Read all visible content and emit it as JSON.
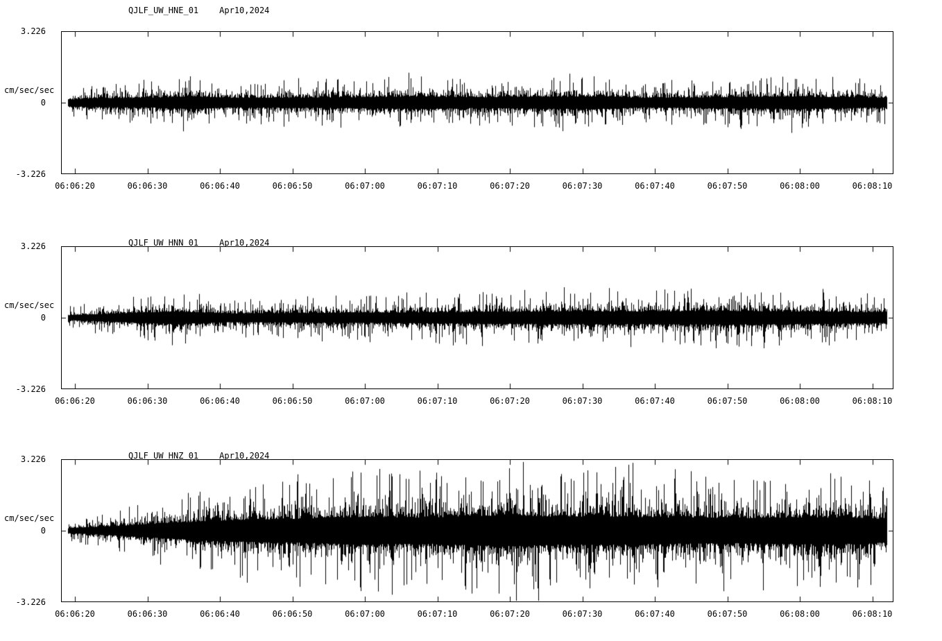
{
  "page": {
    "background_color": "#ffffff",
    "trace_color": "#000000"
  },
  "chart_data": [
    {
      "type": "line",
      "title": "QJLF_UW_HNE_01",
      "date": "Apr10,2024",
      "ylabel": "cm/sec/sec",
      "xlabel": "",
      "ylim": [
        -3.226,
        3.226
      ],
      "ytick_labels": [
        "3.226",
        "0",
        "-3.226"
      ],
      "x_tick_labels": [
        "06:06:20",
        "06:06:30",
        "06:06:40",
        "06:06:50",
        "06:07:00",
        "06:07:10",
        "06:07:20",
        "06:07:30",
        "06:07:40",
        "06:07:50",
        "06:08:00",
        "06:08:10"
      ],
      "grid": false,
      "legend": false,
      "series_description": "continuous seismic acceleration waveform, roughly stationary ambient noise with intermittent spikes",
      "envelope_peak_amplitude": [
        [
          0,
          0.6
        ],
        [
          0.03,
          0.9
        ],
        [
          0.1,
          1.0
        ],
        [
          0.15,
          1.3
        ],
        [
          0.2,
          1.0
        ],
        [
          0.35,
          1.1
        ],
        [
          0.42,
          1.3
        ],
        [
          0.5,
          1.1
        ],
        [
          0.55,
          1.2
        ],
        [
          0.65,
          1.3
        ],
        [
          0.7,
          1.0
        ],
        [
          0.8,
          1.1
        ],
        [
          0.88,
          1.3
        ],
        [
          0.95,
          1.1
        ],
        [
          1,
          1.0
        ]
      ]
    },
    {
      "type": "line",
      "title": "QJLF_UW_HNN_01",
      "date": "Apr10,2024",
      "ylabel": "cm/sec/sec",
      "xlabel": "",
      "ylim": [
        -3.226,
        3.226
      ],
      "ytick_labels": [
        "3.226",
        "0",
        "-3.226"
      ],
      "x_tick_labels": [
        "06:06:20",
        "06:06:30",
        "06:06:40",
        "06:06:50",
        "06:07:00",
        "06:07:10",
        "06:07:20",
        "06:07:30",
        "06:07:40",
        "06:07:50",
        "06:08:00",
        "06:08:10"
      ],
      "grid": false,
      "legend": false,
      "series_description": "continuous seismic acceleration waveform, amplitude slowly increasing toward end of window",
      "envelope_peak_amplitude": [
        [
          0,
          0.5
        ],
        [
          0.05,
          0.8
        ],
        [
          0.13,
          1.3
        ],
        [
          0.2,
          0.9
        ],
        [
          0.3,
          1.0
        ],
        [
          0.4,
          1.1
        ],
        [
          0.5,
          1.2
        ],
        [
          0.6,
          1.3
        ],
        [
          0.7,
          1.3
        ],
        [
          0.8,
          1.4
        ],
        [
          0.9,
          1.3
        ],
        [
          1,
          1.1
        ]
      ]
    },
    {
      "type": "line",
      "title": "QJLF_UW_HNZ_01",
      "date": "Apr10,2024",
      "ylabel": "cm/sec/sec",
      "xlabel": "",
      "ylim": [
        -3.226,
        3.226
      ],
      "ytick_labels": [
        "3.226",
        "0",
        "-3.226"
      ],
      "x_tick_labels": [
        "06:06:20",
        "06:06:30",
        "06:06:40",
        "06:06:50",
        "06:07:00",
        "06:07:10",
        "06:07:20",
        "06:07:30",
        "06:07:40",
        "06:07:50",
        "06:08:00",
        "06:08:10"
      ],
      "grid": false,
      "legend": false,
      "series_description": "continuous seismic acceleration waveform, vertical channel; amplitude ramps up after 06:06:25 and stays large (near full scale) through 06:08:10",
      "envelope_peak_amplitude": [
        [
          0,
          0.5
        ],
        [
          0.04,
          0.8
        ],
        [
          0.08,
          1.2
        ],
        [
          0.14,
          1.8
        ],
        [
          0.2,
          2.2
        ],
        [
          0.28,
          2.5
        ],
        [
          0.36,
          2.9
        ],
        [
          0.44,
          2.7
        ],
        [
          0.5,
          3.1
        ],
        [
          0.55,
          3.2
        ],
        [
          0.6,
          2.9
        ],
        [
          0.68,
          2.9
        ],
        [
          0.75,
          2.7
        ],
        [
          0.82,
          2.6
        ],
        [
          0.9,
          2.8
        ],
        [
          0.96,
          2.7
        ],
        [
          1,
          2.4
        ]
      ]
    }
  ]
}
